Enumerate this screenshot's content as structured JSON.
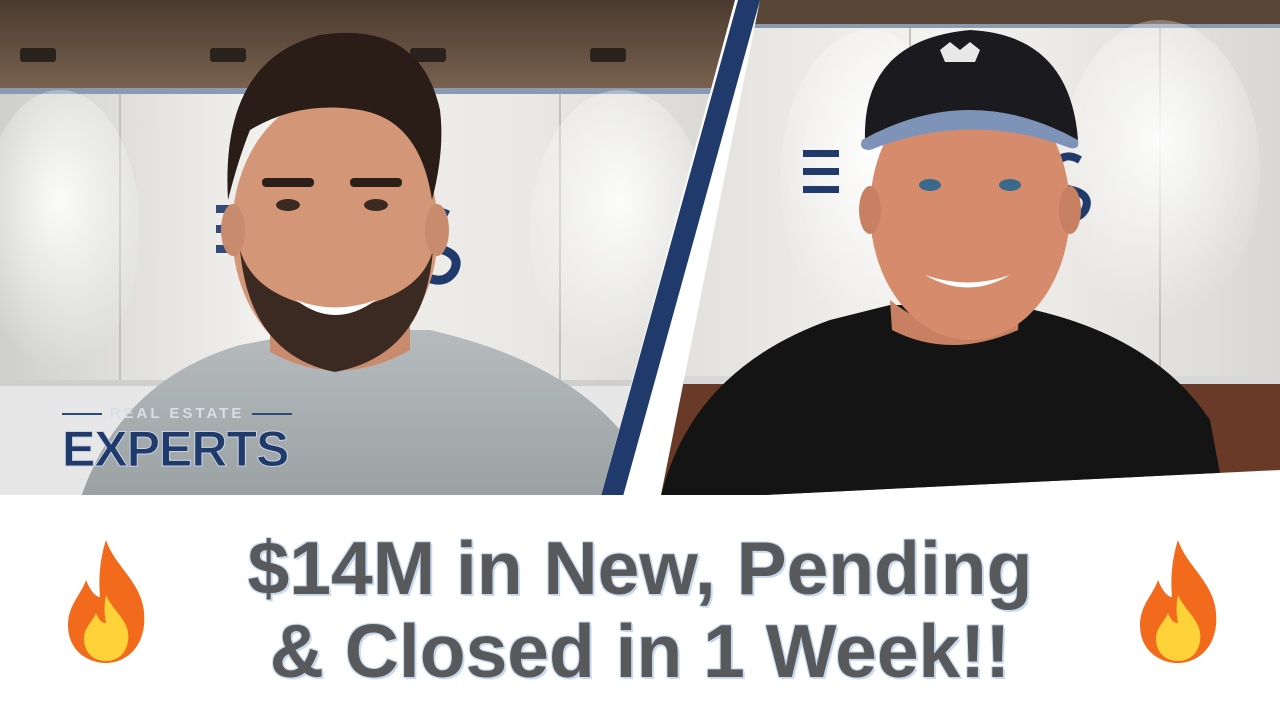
{
  "logo": {
    "small_text": "REAL ESTATE",
    "main_text": "EXPERTS"
  },
  "headline": {
    "line1": "$14M in New, Pending",
    "line2": "& Closed in 1 Week!!"
  },
  "icons": {
    "left": "fire-icon",
    "right": "fire-icon"
  },
  "colors": {
    "brand_navy": "#1f3a6b",
    "headline_text": "#58595b",
    "headline_glow": "#c8d9ef",
    "fire_orange": "#f26a1b",
    "fire_yellow": "#ffd23a"
  }
}
